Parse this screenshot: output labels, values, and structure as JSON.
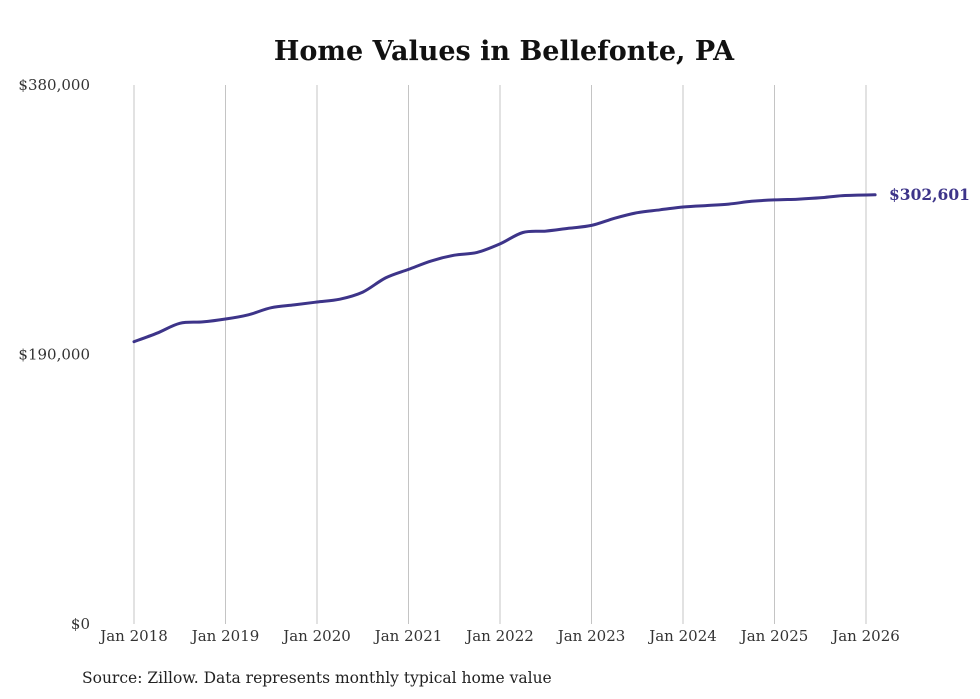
{
  "chart_data": {
    "type": "line",
    "title": "Home Values in Bellefonte, PA",
    "source": "Source: Zillow. Data represents monthly typical home value",
    "ylim": [
      0,
      380000
    ],
    "y_ticks": [
      {
        "value": 0,
        "label": "$0"
      },
      {
        "value": 190000,
        "label": "$190,000"
      },
      {
        "value": 380000,
        "label": "$380,000"
      }
    ],
    "x_ticks": [
      {
        "value": 2018.0,
        "label": "Jan 2018"
      },
      {
        "value": 2019.0,
        "label": "Jan 2019"
      },
      {
        "value": 2020.0,
        "label": "Jan 2020"
      },
      {
        "value": 2021.0,
        "label": "Jan 2021"
      },
      {
        "value": 2022.0,
        "label": "Jan 2022"
      },
      {
        "value": 2023.0,
        "label": "Jan 2023"
      },
      {
        "value": 2024.0,
        "label": "Jan 2024"
      },
      {
        "value": 2025.0,
        "label": "Jan 2025"
      },
      {
        "value": 2026.0,
        "label": "Jan 2026"
      }
    ],
    "xlim": [
      2018.0,
      2026.0
    ],
    "line_color": "#3d3489",
    "end_label": "$302,601",
    "series": [
      {
        "name": "Typical home value",
        "x": [
          2018.0,
          2018.25,
          2018.5,
          2018.75,
          2019.0,
          2019.25,
          2019.5,
          2019.75,
          2020.0,
          2020.25,
          2020.5,
          2020.75,
          2021.0,
          2021.25,
          2021.5,
          2021.75,
          2022.0,
          2022.25,
          2022.5,
          2022.75,
          2023.0,
          2023.25,
          2023.5,
          2023.75,
          2024.0,
          2024.25,
          2024.5,
          2024.75,
          2025.0,
          2025.25,
          2025.5,
          2025.75,
          2026.1
        ],
        "values": [
          199000,
          205000,
          212000,
          213000,
          215000,
          218000,
          223000,
          225000,
          227000,
          229000,
          234000,
          244000,
          250000,
          256000,
          260000,
          262000,
          268000,
          276000,
          277000,
          279000,
          281000,
          286000,
          290000,
          292000,
          294000,
          295000,
          296000,
          298000,
          299000,
          299500,
          300500,
          302000,
          302601
        ]
      }
    ]
  }
}
